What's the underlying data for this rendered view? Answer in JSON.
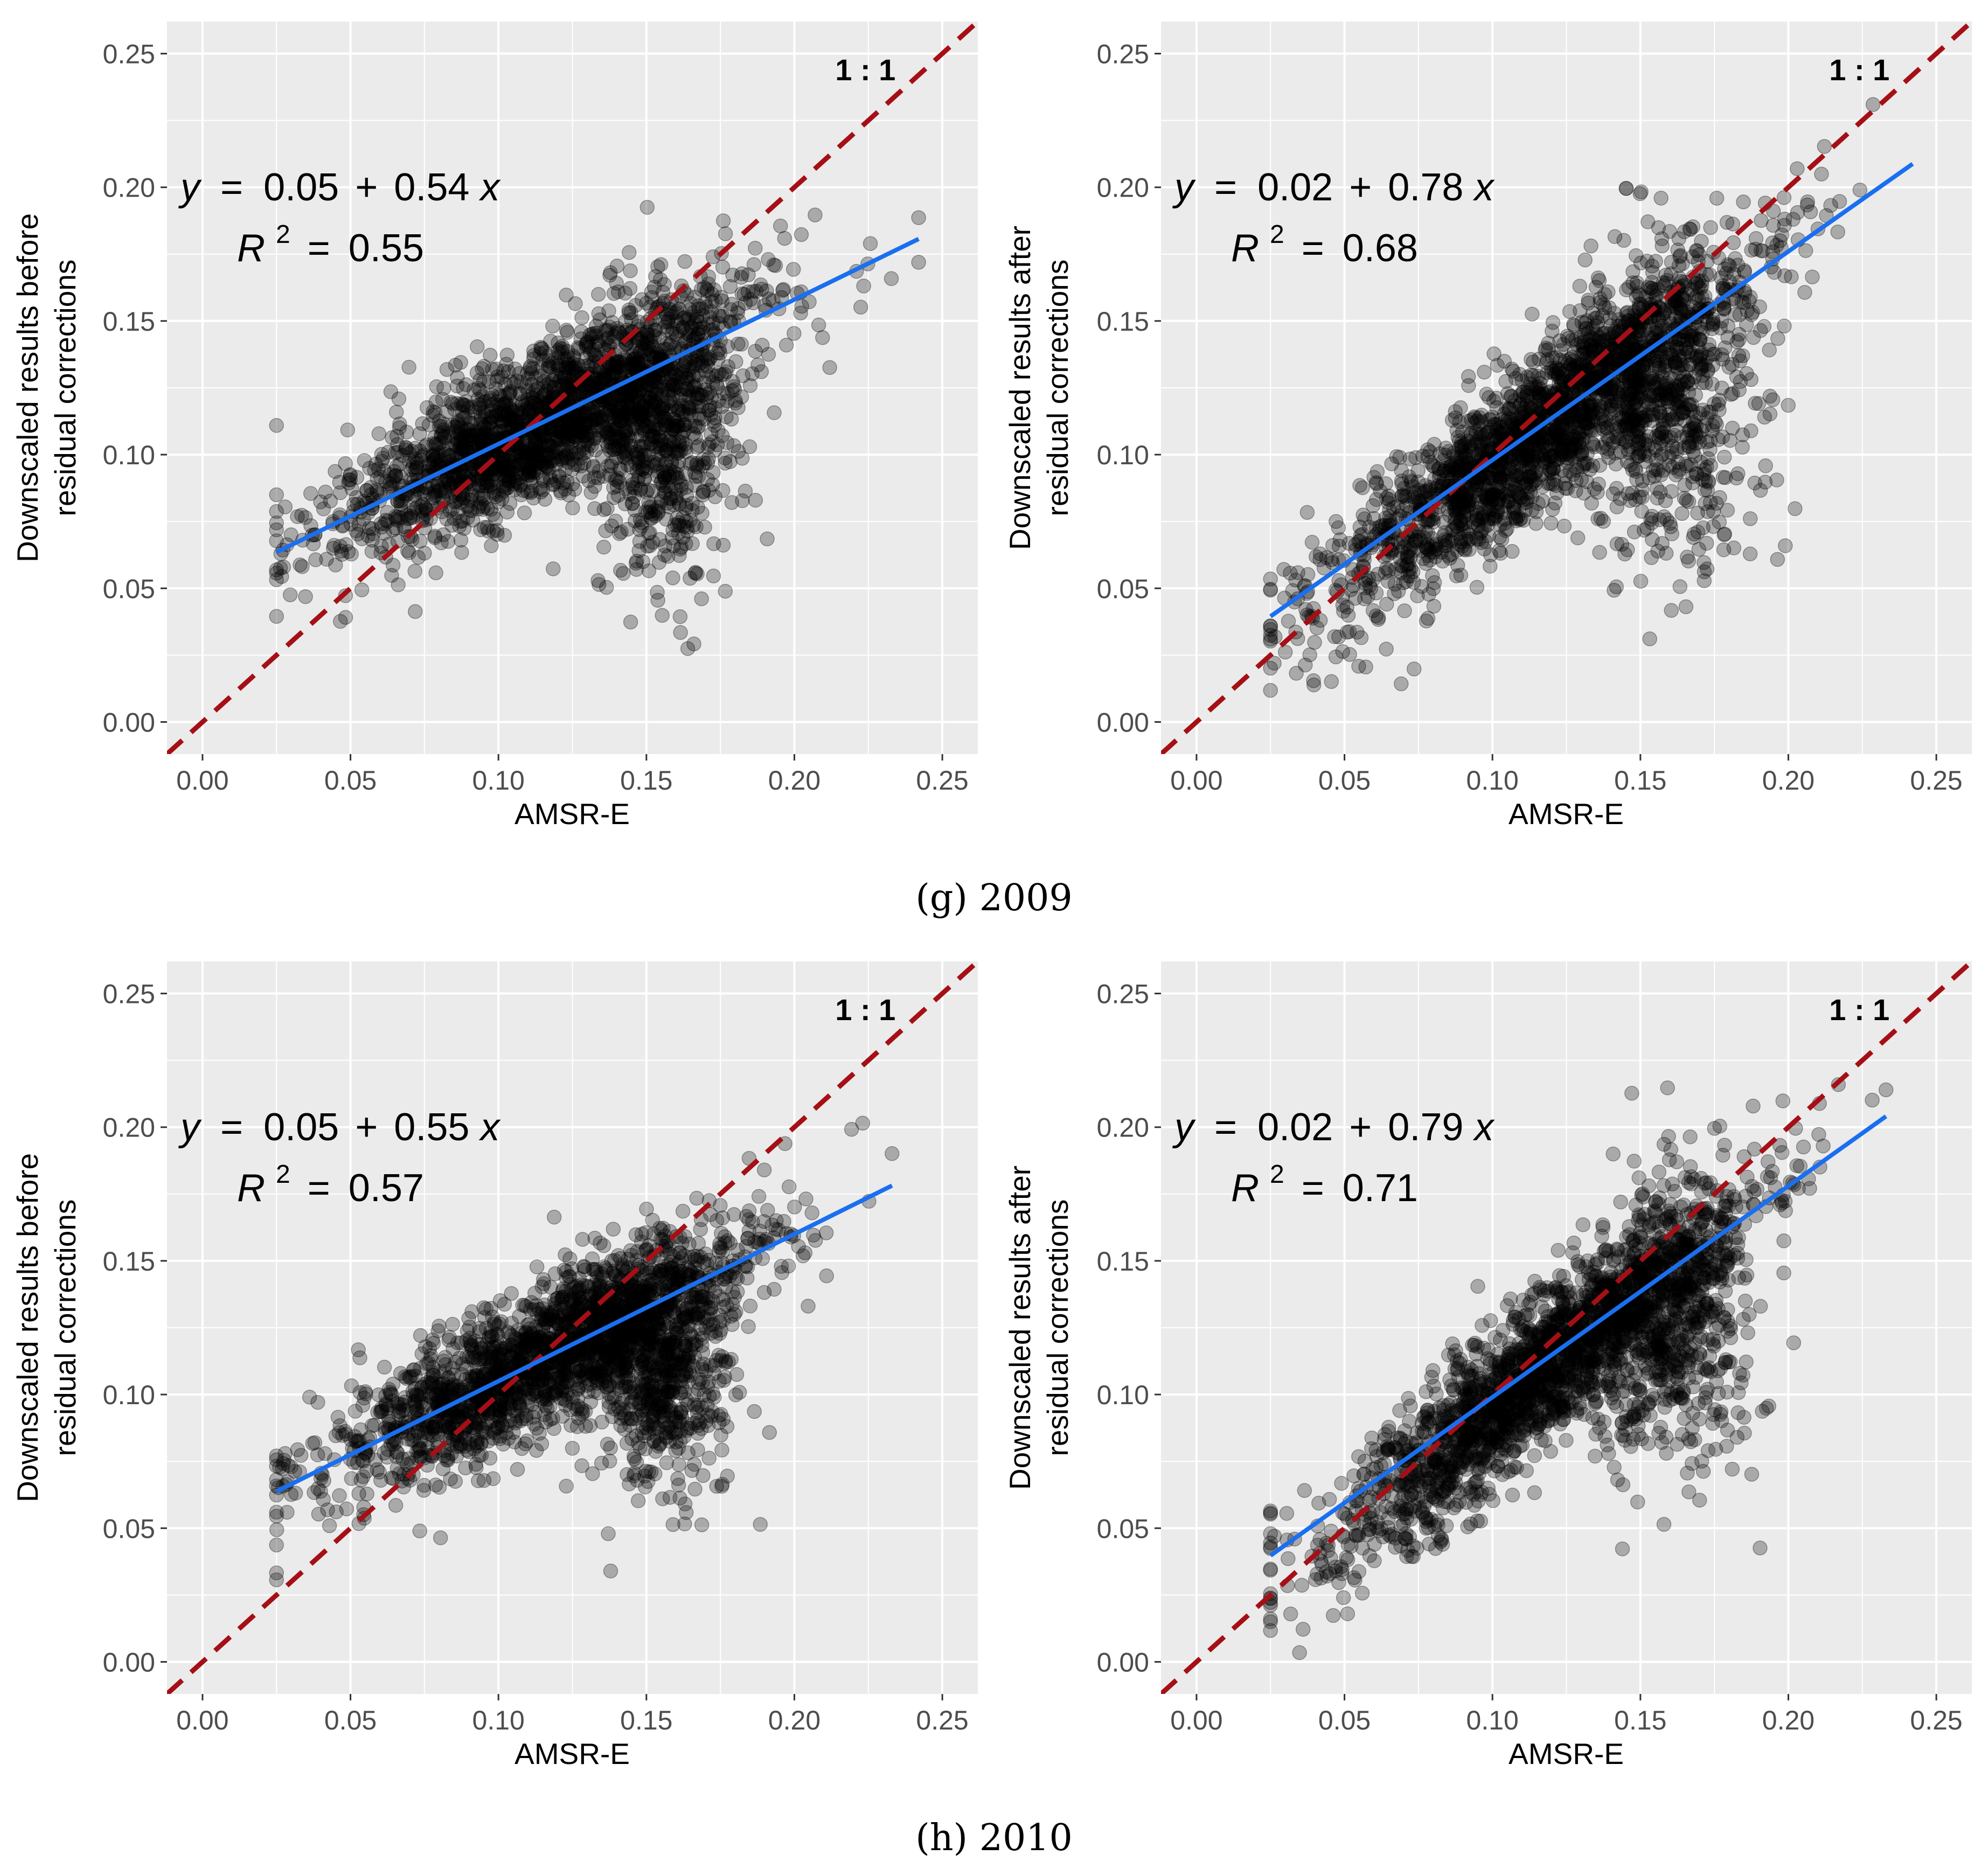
{
  "colors": {
    "panel_bg": "#ebebeb",
    "grid": "#ffffff",
    "points": "#000000",
    "fit_line": "#1a6ff0",
    "one_to_one_line": "#a50f15",
    "tick_text": "#4d4d4d"
  },
  "captions": [
    "(g) 2009",
    "(h) 2010"
  ],
  "chart_data": [
    {
      "type": "scatter",
      "group": "(g) 2009",
      "xlabel": "AMSR-E",
      "ylabel_line1": "Downscaled results before",
      "ylabel_line2": "residual corrections",
      "xlim": [
        -0.012,
        0.262
      ],
      "ylim": [
        -0.012,
        0.262
      ],
      "xticks": [
        "0.00",
        "0.05",
        "0.10",
        "0.15",
        "0.20",
        "0.25"
      ],
      "yticks": [
        "0.00",
        "0.05",
        "0.10",
        "0.15",
        "0.20",
        "0.25"
      ],
      "fit": {
        "intercept": 0.05,
        "slope": 0.54,
        "x_range": [
          0.025,
          0.242
        ]
      },
      "equation": {
        "y": "y",
        "eq": "=",
        "intercept": "0.05",
        "plus": "+",
        "slope": "0.54",
        "x": "x"
      },
      "r2": {
        "R": "R",
        "sup": "2",
        "eq": "=",
        "value": "0.55"
      },
      "ratio_label": "1 : 1",
      "cloud": {
        "x_range": [
          0.025,
          0.242
        ],
        "center_slope": 0.54,
        "center_intercept": 0.05,
        "spread": 0.014,
        "secondary_center": [
          0.155,
          0.105
        ],
        "secondary_spread": [
          0.012,
          0.025
        ],
        "seed": 11
      }
    },
    {
      "type": "scatter",
      "group": "(g) 2009",
      "xlabel": "AMSR-E",
      "ylabel_line1": "Downscaled results after",
      "ylabel_line2": "residual corrections",
      "xlim": [
        -0.012,
        0.262
      ],
      "ylim": [
        -0.012,
        0.262
      ],
      "xticks": [
        "0.00",
        "0.05",
        "0.10",
        "0.15",
        "0.20",
        "0.25"
      ],
      "yticks": [
        "0.00",
        "0.05",
        "0.10",
        "0.15",
        "0.20",
        "0.25"
      ],
      "fit": {
        "intercept": 0.02,
        "slope": 0.78,
        "x_range": [
          0.025,
          0.242
        ]
      },
      "equation": {
        "y": "y",
        "eq": "=",
        "intercept": "0.02",
        "plus": "+",
        "slope": "0.78",
        "x": "x"
      },
      "r2": {
        "R": "R",
        "sup": "2",
        "eq": "=",
        "value": "0.68"
      },
      "ratio_label": "1 : 1",
      "cloud": {
        "x_range": [
          0.025,
          0.242
        ],
        "center_slope": 0.85,
        "center_intercept": 0.01,
        "spread": 0.015,
        "secondary_center": [
          0.16,
          0.12
        ],
        "secondary_spread": [
          0.014,
          0.03
        ],
        "seed": 23
      }
    },
    {
      "type": "scatter",
      "group": "(h) 2010",
      "xlabel": "AMSR-E",
      "ylabel_line1": "Downscaled results before",
      "ylabel_line2": "residual corrections",
      "xlim": [
        -0.012,
        0.262
      ],
      "ylim": [
        -0.012,
        0.262
      ],
      "xticks": [
        "0.00",
        "0.05",
        "0.10",
        "0.15",
        "0.20",
        "0.25"
      ],
      "yticks": [
        "0.00",
        "0.05",
        "0.10",
        "0.15",
        "0.20",
        "0.25"
      ],
      "fit": {
        "intercept": 0.05,
        "slope": 0.55,
        "x_range": [
          0.025,
          0.233
        ]
      },
      "equation": {
        "y": "y",
        "eq": "=",
        "intercept": "0.05",
        "plus": "+",
        "slope": "0.55",
        "x": "x"
      },
      "r2": {
        "R": "R",
        "sup": "2",
        "eq": "=",
        "value": "0.57"
      },
      "ratio_label": "1 : 1",
      "cloud": {
        "x_range": [
          0.025,
          0.233
        ],
        "center_slope": 0.55,
        "center_intercept": 0.05,
        "spread": 0.013,
        "secondary_center": [
          0.155,
          0.11
        ],
        "secondary_spread": [
          0.012,
          0.022
        ],
        "seed": 37
      }
    },
    {
      "type": "scatter",
      "group": "(h) 2010",
      "xlabel": "AMSR-E",
      "ylabel_line1": "Downscaled results after",
      "ylabel_line2": "residual corrections",
      "xlim": [
        -0.012,
        0.262
      ],
      "ylim": [
        -0.012,
        0.262
      ],
      "xticks": [
        "0.00",
        "0.05",
        "0.10",
        "0.15",
        "0.20",
        "0.25"
      ],
      "yticks": [
        "0.00",
        "0.05",
        "0.10",
        "0.15",
        "0.20",
        "0.25"
      ],
      "fit": {
        "intercept": 0.02,
        "slope": 0.79,
        "x_range": [
          0.025,
          0.233
        ]
      },
      "equation": {
        "y": "y",
        "eq": "=",
        "intercept": "0.02",
        "plus": "+",
        "slope": "0.79",
        "x": "x"
      },
      "r2": {
        "R": "R",
        "sup": "2",
        "eq": "=",
        "value": "0.71"
      },
      "ratio_label": "1 : 1",
      "cloud": {
        "x_range": [
          0.025,
          0.233
        ],
        "center_slope": 0.86,
        "center_intercept": 0.008,
        "spread": 0.014,
        "secondary_center": [
          0.16,
          0.125
        ],
        "secondary_spread": [
          0.013,
          0.028
        ],
        "seed": 51
      }
    }
  ]
}
